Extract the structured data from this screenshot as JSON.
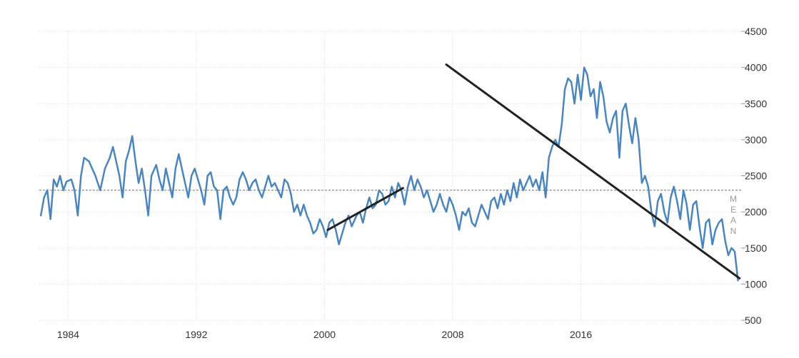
{
  "chart_data": {
    "type": "line",
    "title": "",
    "xlabel": "",
    "ylabel": "",
    "xlim": [
      1982.2,
      2026.0
    ],
    "ylim": [
      500,
      4500
    ],
    "y_ticks": [
      500,
      1000,
      1500,
      2000,
      2500,
      3000,
      3500,
      4000,
      4500
    ],
    "y_tick_labels": [
      "500",
      "1000",
      "1500",
      "2000",
      "2500",
      "3000",
      "3500",
      "4000",
      "4500"
    ],
    "x_ticks": [
      1984,
      1992,
      2000,
      2008,
      2016
    ],
    "x_tick_labels": [
      "1984",
      "1992",
      "2000",
      "2008",
      "2016"
    ],
    "y_axis_side": "right",
    "grid": true,
    "mean": {
      "value": 2300,
      "label_letters": [
        "M",
        "E",
        "A",
        "N"
      ]
    },
    "series": [
      {
        "color": "#4a86bd",
        "points": [
          [
            1982.3,
            1950
          ],
          [
            1982.5,
            2200
          ],
          [
            1982.7,
            2300
          ],
          [
            1982.9,
            1900
          ],
          [
            1983.1,
            2450
          ],
          [
            1983.3,
            2350
          ],
          [
            1983.5,
            2500
          ],
          [
            1983.7,
            2300
          ],
          [
            1983.9,
            2420
          ],
          [
            1984.2,
            2450
          ],
          [
            1984.4,
            2300
          ],
          [
            1984.6,
            1950
          ],
          [
            1984.8,
            2500
          ],
          [
            1985.0,
            2750
          ],
          [
            1985.3,
            2700
          ],
          [
            1985.5,
            2600
          ],
          [
            1985.7,
            2500
          ],
          [
            1986.0,
            2300
          ],
          [
            1986.3,
            2600
          ],
          [
            1986.6,
            2750
          ],
          [
            1986.8,
            2900
          ],
          [
            1987.0,
            2700
          ],
          [
            1987.2,
            2500
          ],
          [
            1987.4,
            2200
          ],
          [
            1987.6,
            2700
          ],
          [
            1987.8,
            2850
          ],
          [
            1988.0,
            3050
          ],
          [
            1988.2,
            2700
          ],
          [
            1988.4,
            2400
          ],
          [
            1988.6,
            2600
          ],
          [
            1988.8,
            2300
          ],
          [
            1989.0,
            1950
          ],
          [
            1989.2,
            2500
          ],
          [
            1989.5,
            2650
          ],
          [
            1989.7,
            2450
          ],
          [
            1989.9,
            2300
          ],
          [
            1990.1,
            2600
          ],
          [
            1990.3,
            2400
          ],
          [
            1990.5,
            2200
          ],
          [
            1990.7,
            2600
          ],
          [
            1990.9,
            2800
          ],
          [
            1991.1,
            2600
          ],
          [
            1991.3,
            2400
          ],
          [
            1991.5,
            2200
          ],
          [
            1991.7,
            2500
          ],
          [
            1991.9,
            2600
          ],
          [
            1992.1,
            2450
          ],
          [
            1992.3,
            2300
          ],
          [
            1992.5,
            2100
          ],
          [
            1992.7,
            2500
          ],
          [
            1992.9,
            2550
          ],
          [
            1993.1,
            2350
          ],
          [
            1993.3,
            2300
          ],
          [
            1993.5,
            1900
          ],
          [
            1993.7,
            2300
          ],
          [
            1993.9,
            2350
          ],
          [
            1994.1,
            2200
          ],
          [
            1994.3,
            2100
          ],
          [
            1994.5,
            2200
          ],
          [
            1994.7,
            2450
          ],
          [
            1994.9,
            2550
          ],
          [
            1995.1,
            2450
          ],
          [
            1995.3,
            2300
          ],
          [
            1995.5,
            2400
          ],
          [
            1995.7,
            2450
          ],
          [
            1995.9,
            2300
          ],
          [
            1996.1,
            2200
          ],
          [
            1996.3,
            2350
          ],
          [
            1996.5,
            2500
          ],
          [
            1996.7,
            2350
          ],
          [
            1996.9,
            2400
          ],
          [
            1997.1,
            2300
          ],
          [
            1997.3,
            2200
          ],
          [
            1997.5,
            2450
          ],
          [
            1997.7,
            2400
          ],
          [
            1997.9,
            2250
          ],
          [
            1998.1,
            2000
          ],
          [
            1998.3,
            2100
          ],
          [
            1998.5,
            1950
          ],
          [
            1998.7,
            2100
          ],
          [
            1998.9,
            1950
          ],
          [
            1999.1,
            1850
          ],
          [
            1999.3,
            1700
          ],
          [
            1999.5,
            1750
          ],
          [
            1999.7,
            1900
          ],
          [
            1999.9,
            1800
          ],
          [
            2000.1,
            1650
          ],
          [
            2000.3,
            1850
          ],
          [
            2000.5,
            1900
          ],
          [
            2000.7,
            1750
          ],
          [
            2000.9,
            1550
          ],
          [
            2001.1,
            1700
          ],
          [
            2001.3,
            1850
          ],
          [
            2001.5,
            1950
          ],
          [
            2001.7,
            1800
          ],
          [
            2002.0,
            1950
          ],
          [
            2002.2,
            2000
          ],
          [
            2002.4,
            1850
          ],
          [
            2002.6,
            2050
          ],
          [
            2002.8,
            2200
          ],
          [
            2003.0,
            2050
          ],
          [
            2003.2,
            2100
          ],
          [
            2003.4,
            2300
          ],
          [
            2003.6,
            2250
          ],
          [
            2003.8,
            2100
          ],
          [
            2004.0,
            2150
          ],
          [
            2004.2,
            2350
          ],
          [
            2004.4,
            2200
          ],
          [
            2004.6,
            2400
          ],
          [
            2004.8,
            2300
          ],
          [
            2005.0,
            2100
          ],
          [
            2005.2,
            2350
          ],
          [
            2005.4,
            2500
          ],
          [
            2005.6,
            2300
          ],
          [
            2005.8,
            2450
          ],
          [
            2006.0,
            2350
          ],
          [
            2006.2,
            2200
          ],
          [
            2006.4,
            2300
          ],
          [
            2006.6,
            2150
          ],
          [
            2006.8,
            2000
          ],
          [
            2007.0,
            2100
          ],
          [
            2007.2,
            2250
          ],
          [
            2007.4,
            2100
          ],
          [
            2007.6,
            2000
          ],
          [
            2007.8,
            2200
          ],
          [
            2008.0,
            2100
          ],
          [
            2008.2,
            1950
          ],
          [
            2008.4,
            1750
          ],
          [
            2008.6,
            2000
          ],
          [
            2008.8,
            1950
          ],
          [
            2009.0,
            2050
          ],
          [
            2009.2,
            1850
          ],
          [
            2009.4,
            1800
          ],
          [
            2009.6,
            1950
          ],
          [
            2009.8,
            2100
          ],
          [
            2010.0,
            2000
          ],
          [
            2010.2,
            1900
          ],
          [
            2010.4,
            2150
          ],
          [
            2010.6,
            2200
          ],
          [
            2010.8,
            2050
          ],
          [
            2011.0,
            2250
          ],
          [
            2011.2,
            2100
          ],
          [
            2011.4,
            2300
          ],
          [
            2011.6,
            2150
          ],
          [
            2011.8,
            2400
          ],
          [
            2012.0,
            2200
          ],
          [
            2012.2,
            2450
          ],
          [
            2012.4,
            2300
          ],
          [
            2012.6,
            2400
          ],
          [
            2012.8,
            2500
          ],
          [
            2013.0,
            2350
          ],
          [
            2013.2,
            2450
          ],
          [
            2013.4,
            2300
          ],
          [
            2013.6,
            2550
          ],
          [
            2013.8,
            2200
          ],
          [
            2014.0,
            2750
          ],
          [
            2014.2,
            2900
          ],
          [
            2014.4,
            3000
          ],
          [
            2014.6,
            2900
          ],
          [
            2014.8,
            3200
          ],
          [
            2015.0,
            3700
          ],
          [
            2015.2,
            3850
          ],
          [
            2015.4,
            3800
          ],
          [
            2015.6,
            3500
          ],
          [
            2015.8,
            3900
          ],
          [
            2016.0,
            3550
          ],
          [
            2016.2,
            4000
          ],
          [
            2016.4,
            3900
          ],
          [
            2016.6,
            3600
          ],
          [
            2016.8,
            3700
          ],
          [
            2017.0,
            3300
          ],
          [
            2017.2,
            3800
          ],
          [
            2017.4,
            3600
          ],
          [
            2017.6,
            3250
          ],
          [
            2017.8,
            3100
          ],
          [
            2018.0,
            3300
          ],
          [
            2018.2,
            3400
          ],
          [
            2018.4,
            2750
          ],
          [
            2018.6,
            3400
          ],
          [
            2018.8,
            3500
          ],
          [
            2019.0,
            3200
          ],
          [
            2019.2,
            2950
          ],
          [
            2019.4,
            3300
          ],
          [
            2019.6,
            3000
          ],
          [
            2019.8,
            2400
          ],
          [
            2020.0,
            2500
          ],
          [
            2020.2,
            2350
          ],
          [
            2020.4,
            2000
          ],
          [
            2020.6,
            1800
          ],
          [
            2020.8,
            2150
          ],
          [
            2021.0,
            2250
          ],
          [
            2021.2,
            2000
          ],
          [
            2021.4,
            1850
          ],
          [
            2021.6,
            2200
          ],
          [
            2021.8,
            2350
          ],
          [
            2022.0,
            2150
          ],
          [
            2022.2,
            1900
          ],
          [
            2022.4,
            2300
          ],
          [
            2022.6,
            2100
          ],
          [
            2022.8,
            1750
          ],
          [
            2023.0,
            2100
          ],
          [
            2023.2,
            2150
          ],
          [
            2023.4,
            1800
          ],
          [
            2023.6,
            1500
          ],
          [
            2023.8,
            1850
          ],
          [
            2024.0,
            1900
          ],
          [
            2024.2,
            1550
          ],
          [
            2024.4,
            1750
          ],
          [
            2024.6,
            1850
          ],
          [
            2024.8,
            1900
          ],
          [
            2025.0,
            1600
          ],
          [
            2025.2,
            1400
          ],
          [
            2025.4,
            1500
          ],
          [
            2025.6,
            1450
          ],
          [
            2025.8,
            1050
          ]
        ]
      }
    ],
    "trend_lines": [
      {
        "color": "#222222",
        "from": [
          2000.2,
          1750
        ],
        "to": [
          2004.9,
          2330
        ]
      },
      {
        "color": "#222222",
        "from": [
          2007.6,
          4040
        ],
        "to": [
          2025.9,
          1080
        ]
      }
    ]
  }
}
